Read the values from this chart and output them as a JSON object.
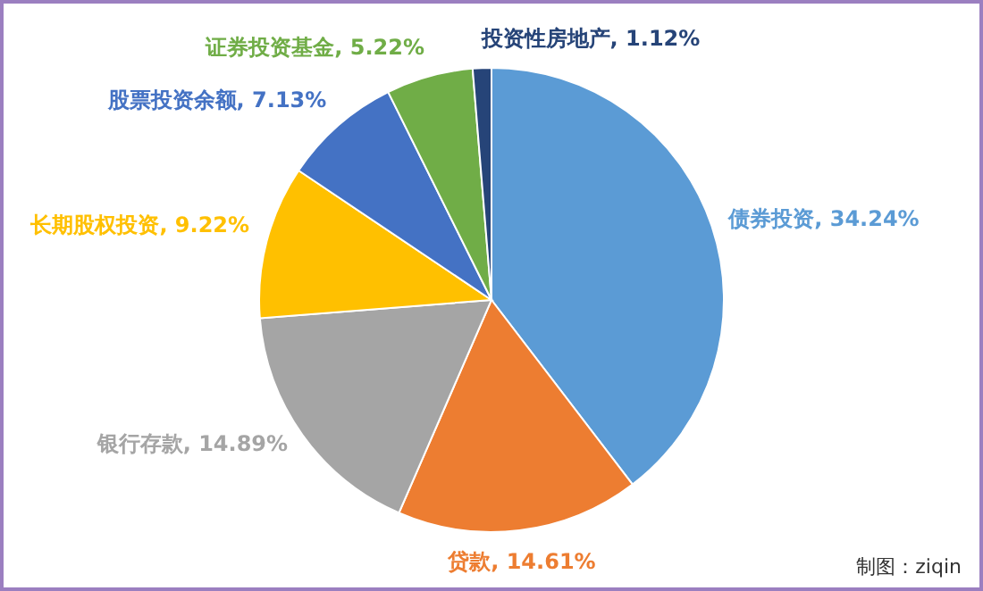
{
  "chart_data": {
    "type": "pie",
    "categories": [
      "债券投资",
      "贷款",
      "银行存款",
      "长期股权投资",
      "股票投资余额",
      "证券投资基金",
      "投资性房地产"
    ],
    "values": [
      34.24,
      14.61,
      14.89,
      9.22,
      7.13,
      5.22,
      1.12
    ],
    "value_labels": [
      "34.24%",
      "14.61%",
      "14.89%",
      "9.22%",
      "7.13%",
      "5.22%",
      "1.12%"
    ],
    "colors": [
      "#5b9bd5",
      "#ed7d31",
      "#a5a5a5",
      "#ffc000",
      "#4472c4",
      "#70ad47",
      "#264478"
    ],
    "annotations": [
      "制图：ziqin"
    ]
  }
}
